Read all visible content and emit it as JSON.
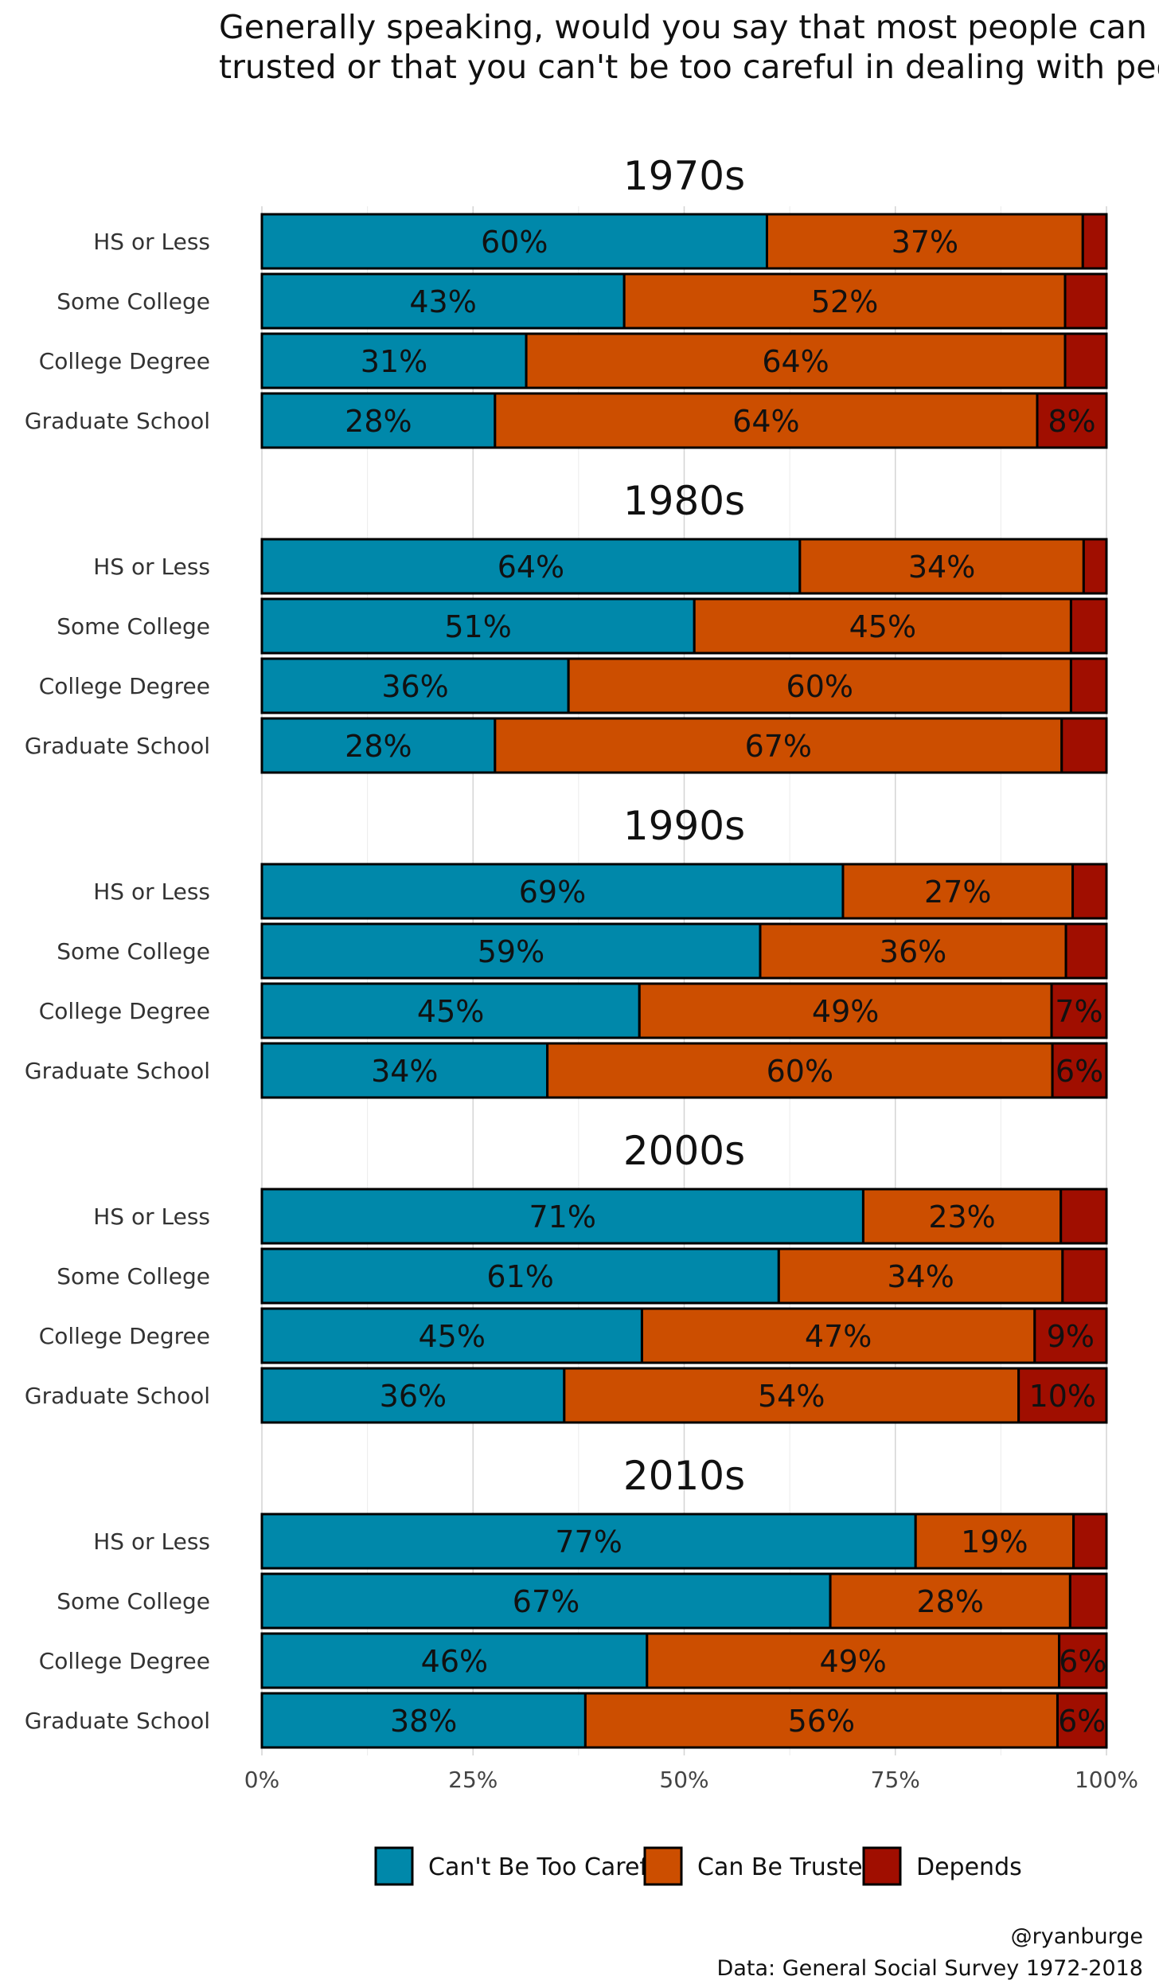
{
  "chart_data": {
    "type": "bar",
    "orientation": "horizontal",
    "stacked": true,
    "title": "Generally speaking, would you say that most people can be trusted or that you can't be too careful in dealing with people?",
    "title_lines": [
      "Generally speaking, would you say that most people can be",
      "trusted or that you can't be too careful in dealing with people?"
    ],
    "categories": [
      "HS or Less",
      "Some College",
      "College Degree",
      "Graduate School"
    ],
    "series_names": [
      "Can't Be Too Careful",
      "Can Be Trusted",
      "Depends"
    ],
    "colors": [
      "#0088AA",
      "#CC4E00",
      "#A00E00"
    ],
    "x_ticks": [
      "0%",
      "25%",
      "50%",
      "75%",
      "100%"
    ],
    "xlim": [
      0,
      100
    ],
    "grid": "vertical",
    "legend_position": "bottom",
    "facets": [
      {
        "title": "1970s",
        "rows": [
          {
            "category": "HS or Less",
            "values": [
              59.8,
              37.4,
              2.8
            ],
            "labels": [
              "60%",
              "37%",
              ""
            ]
          },
          {
            "category": "Some College",
            "values": [
              42.9,
              52.2,
              4.9
            ],
            "labels": [
              "43%",
              "52%",
              ""
            ]
          },
          {
            "category": "College Degree",
            "values": [
              31.3,
              63.8,
              4.9
            ],
            "labels": [
              "31%",
              "64%",
              ""
            ]
          },
          {
            "category": "Graduate School",
            "values": [
              27.6,
              64.2,
              8.2
            ],
            "labels": [
              "28%",
              "64%",
              "8%"
            ]
          }
        ]
      },
      {
        "title": "1980s",
        "rows": [
          {
            "category": "HS or Less",
            "values": [
              63.7,
              33.6,
              2.7
            ],
            "labels": [
              "64%",
              "34%",
              ""
            ]
          },
          {
            "category": "Some College",
            "values": [
              51.2,
              44.6,
              4.2
            ],
            "labels": [
              "51%",
              "45%",
              ""
            ]
          },
          {
            "category": "College Degree",
            "values": [
              36.3,
              59.5,
              4.2
            ],
            "labels": [
              "36%",
              "60%",
              ""
            ]
          },
          {
            "category": "Graduate School",
            "values": [
              27.6,
              67.1,
              5.3
            ],
            "labels": [
              "28%",
              "67%",
              ""
            ]
          }
        ]
      },
      {
        "title": "1990s",
        "rows": [
          {
            "category": "HS or Less",
            "values": [
              68.8,
              27.2,
              4.0
            ],
            "labels": [
              "69%",
              "27%",
              ""
            ]
          },
          {
            "category": "Some College",
            "values": [
              59.0,
              36.2,
              4.8
            ],
            "labels": [
              "59%",
              "36%",
              ""
            ]
          },
          {
            "category": "College Degree",
            "values": [
              44.7,
              48.8,
              6.5
            ],
            "labels": [
              "45%",
              "49%",
              "7%"
            ]
          },
          {
            "category": "Graduate School",
            "values": [
              33.8,
              59.8,
              6.4
            ],
            "labels": [
              "34%",
              "60%",
              "6%"
            ]
          }
        ]
      },
      {
        "title": "2000s",
        "rows": [
          {
            "category": "HS or Less",
            "values": [
              71.2,
              23.4,
              5.4
            ],
            "labels": [
              "71%",
              "23%",
              ""
            ]
          },
          {
            "category": "Some College",
            "values": [
              61.2,
              33.6,
              5.2
            ],
            "labels": [
              "61%",
              "34%",
              ""
            ]
          },
          {
            "category": "College Degree",
            "values": [
              45.0,
              46.5,
              8.5
            ],
            "labels": [
              "45%",
              "47%",
              "9%"
            ]
          },
          {
            "category": "Graduate School",
            "values": [
              35.8,
              53.8,
              10.4
            ],
            "labels": [
              "36%",
              "54%",
              "10%"
            ]
          }
        ]
      },
      {
        "title": "2010s",
        "rows": [
          {
            "category": "HS or Less",
            "values": [
              77.4,
              18.7,
              3.9
            ],
            "labels": [
              "77%",
              "19%",
              ""
            ]
          },
          {
            "category": "Some College",
            "values": [
              67.3,
              28.4,
              4.3
            ],
            "labels": [
              "67%",
              "28%",
              ""
            ]
          },
          {
            "category": "College Degree",
            "values": [
              45.6,
              48.8,
              5.6
            ],
            "labels": [
              "46%",
              "49%",
              "6%"
            ]
          },
          {
            "category": "Graduate School",
            "values": [
              38.3,
              55.9,
              5.8
            ],
            "labels": [
              "38%",
              "56%",
              "6%"
            ]
          }
        ]
      }
    ],
    "caption_lines": [
      "@ryanburge",
      "Data: General Social Survey 1972-2018"
    ]
  }
}
